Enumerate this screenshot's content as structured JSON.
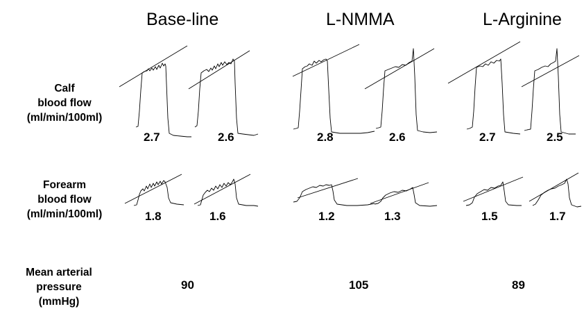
{
  "columns": [
    {
      "id": "baseline",
      "label": "Base-line"
    },
    {
      "id": "lnmma",
      "label": "L-NMMA"
    },
    {
      "id": "larginine",
      "label": "L-Arginine"
    }
  ],
  "rows": {
    "calf": {
      "label_lines": [
        "Calf",
        "blood flow",
        "(ml/min/100ml)"
      ],
      "values": [
        "2.7",
        "2.6",
        "2.8",
        "2.6",
        "2.7",
        "2.5"
      ]
    },
    "forearm": {
      "label_lines": [
        "Forearm",
        "blood flow",
        "(ml/min/100ml)"
      ],
      "values": [
        "1.8",
        "1.6",
        "1.2",
        "1.3",
        "1.5",
        "1.7"
      ]
    },
    "pressure": {
      "label_lines": [
        "Mean arterial",
        "pressure",
        "(mmHg)"
      ],
      "values": [
        "90",
        "105",
        "89"
      ]
    }
  }
}
